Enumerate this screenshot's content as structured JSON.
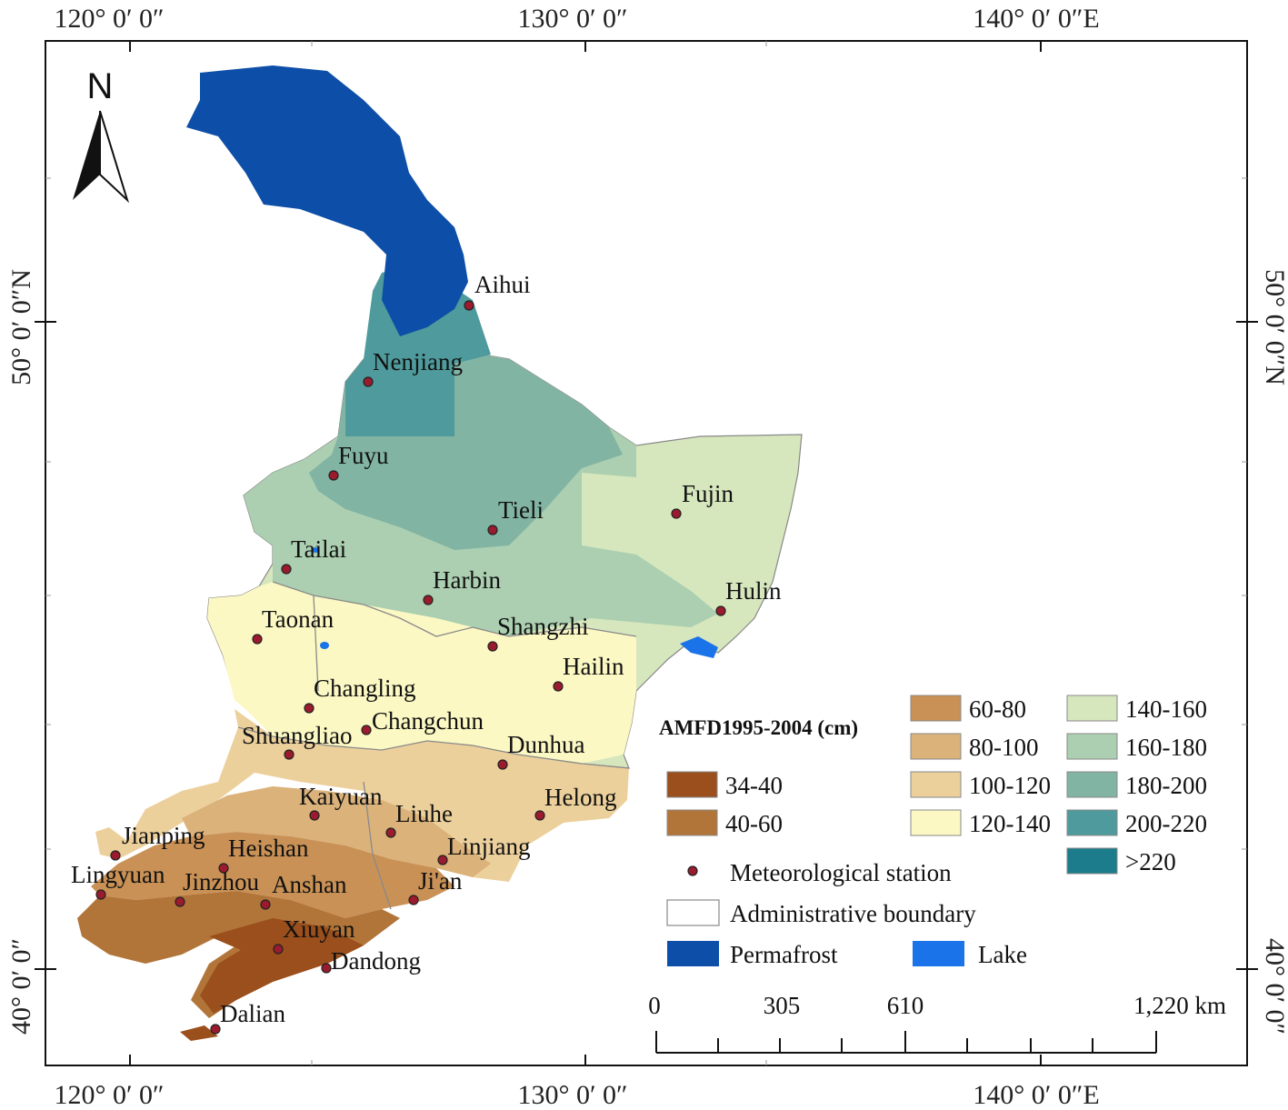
{
  "coords": {
    "top": [
      "120° 0′ 0″",
      "130° 0′ 0″",
      "140° 0′ 0″E"
    ],
    "bottom": [
      "120° 0′ 0″",
      "130° 0′ 0″",
      "140° 0′ 0″E"
    ],
    "left": [
      "50° 0′ 0″N",
      "40° 0′ 0″"
    ],
    "right": [
      "50° 0′ 0″N",
      "40° 0′ 0″"
    ]
  },
  "north_label": "N",
  "stations": [
    {
      "name": "Aihui"
    },
    {
      "name": "Nenjiang"
    },
    {
      "name": "Fuyu"
    },
    {
      "name": "Tieli"
    },
    {
      "name": "Fujin"
    },
    {
      "name": "Tailai"
    },
    {
      "name": "Harbin"
    },
    {
      "name": "Hulin"
    },
    {
      "name": "Taonan"
    },
    {
      "name": "Shangzhi"
    },
    {
      "name": "Hailin"
    },
    {
      "name": "Changling"
    },
    {
      "name": "Changchun"
    },
    {
      "name": "Shuangliao"
    },
    {
      "name": "Dunhua"
    },
    {
      "name": "Helong"
    },
    {
      "name": "Kaiyuan"
    },
    {
      "name": "Liuhe"
    },
    {
      "name": "Jianping"
    },
    {
      "name": "Heishan"
    },
    {
      "name": "Linjiang"
    },
    {
      "name": "Lingyuan"
    },
    {
      "name": "Jinzhou"
    },
    {
      "name": "Anshan"
    },
    {
      "name": "Ji'an"
    },
    {
      "name": "Xiuyan"
    },
    {
      "name": "Dandong"
    },
    {
      "name": "Dalian"
    }
  ],
  "legend": {
    "title": "AMFD1995-2004 (cm)",
    "classes": [
      {
        "label": "34-40",
        "color": "#9a4f1c"
      },
      {
        "label": "40-60",
        "color": "#b27539"
      },
      {
        "label": "60-80",
        "color": "#c99155"
      },
      {
        "label": "80-100",
        "color": "#dbb27a"
      },
      {
        "label": "100-120",
        "color": "#ecd09c"
      },
      {
        "label": "120-140",
        "color": "#fbf8c3"
      },
      {
        "label": "140-160",
        "color": "#d6e6bd"
      },
      {
        "label": "160-180",
        "color": "#abcfb0"
      },
      {
        "label": "180-200",
        "color": "#82b4a3"
      },
      {
        "label": "200-220",
        "color": "#4f9a9c"
      },
      {
        "label": ">220",
        "color": "#1d7c8c"
      }
    ],
    "station_label": "Meteorological station",
    "station_color": "#9b1b2e",
    "boundary_label": "Administrative boundary",
    "permafrost_label": "Permafrost",
    "permafrost_color": "#0d4fa8",
    "lake_label": "Lake",
    "lake_color": "#1a73e8"
  },
  "scale_bar": {
    "labels": [
      "0",
      "305",
      "610",
      "1,220 km"
    ]
  }
}
